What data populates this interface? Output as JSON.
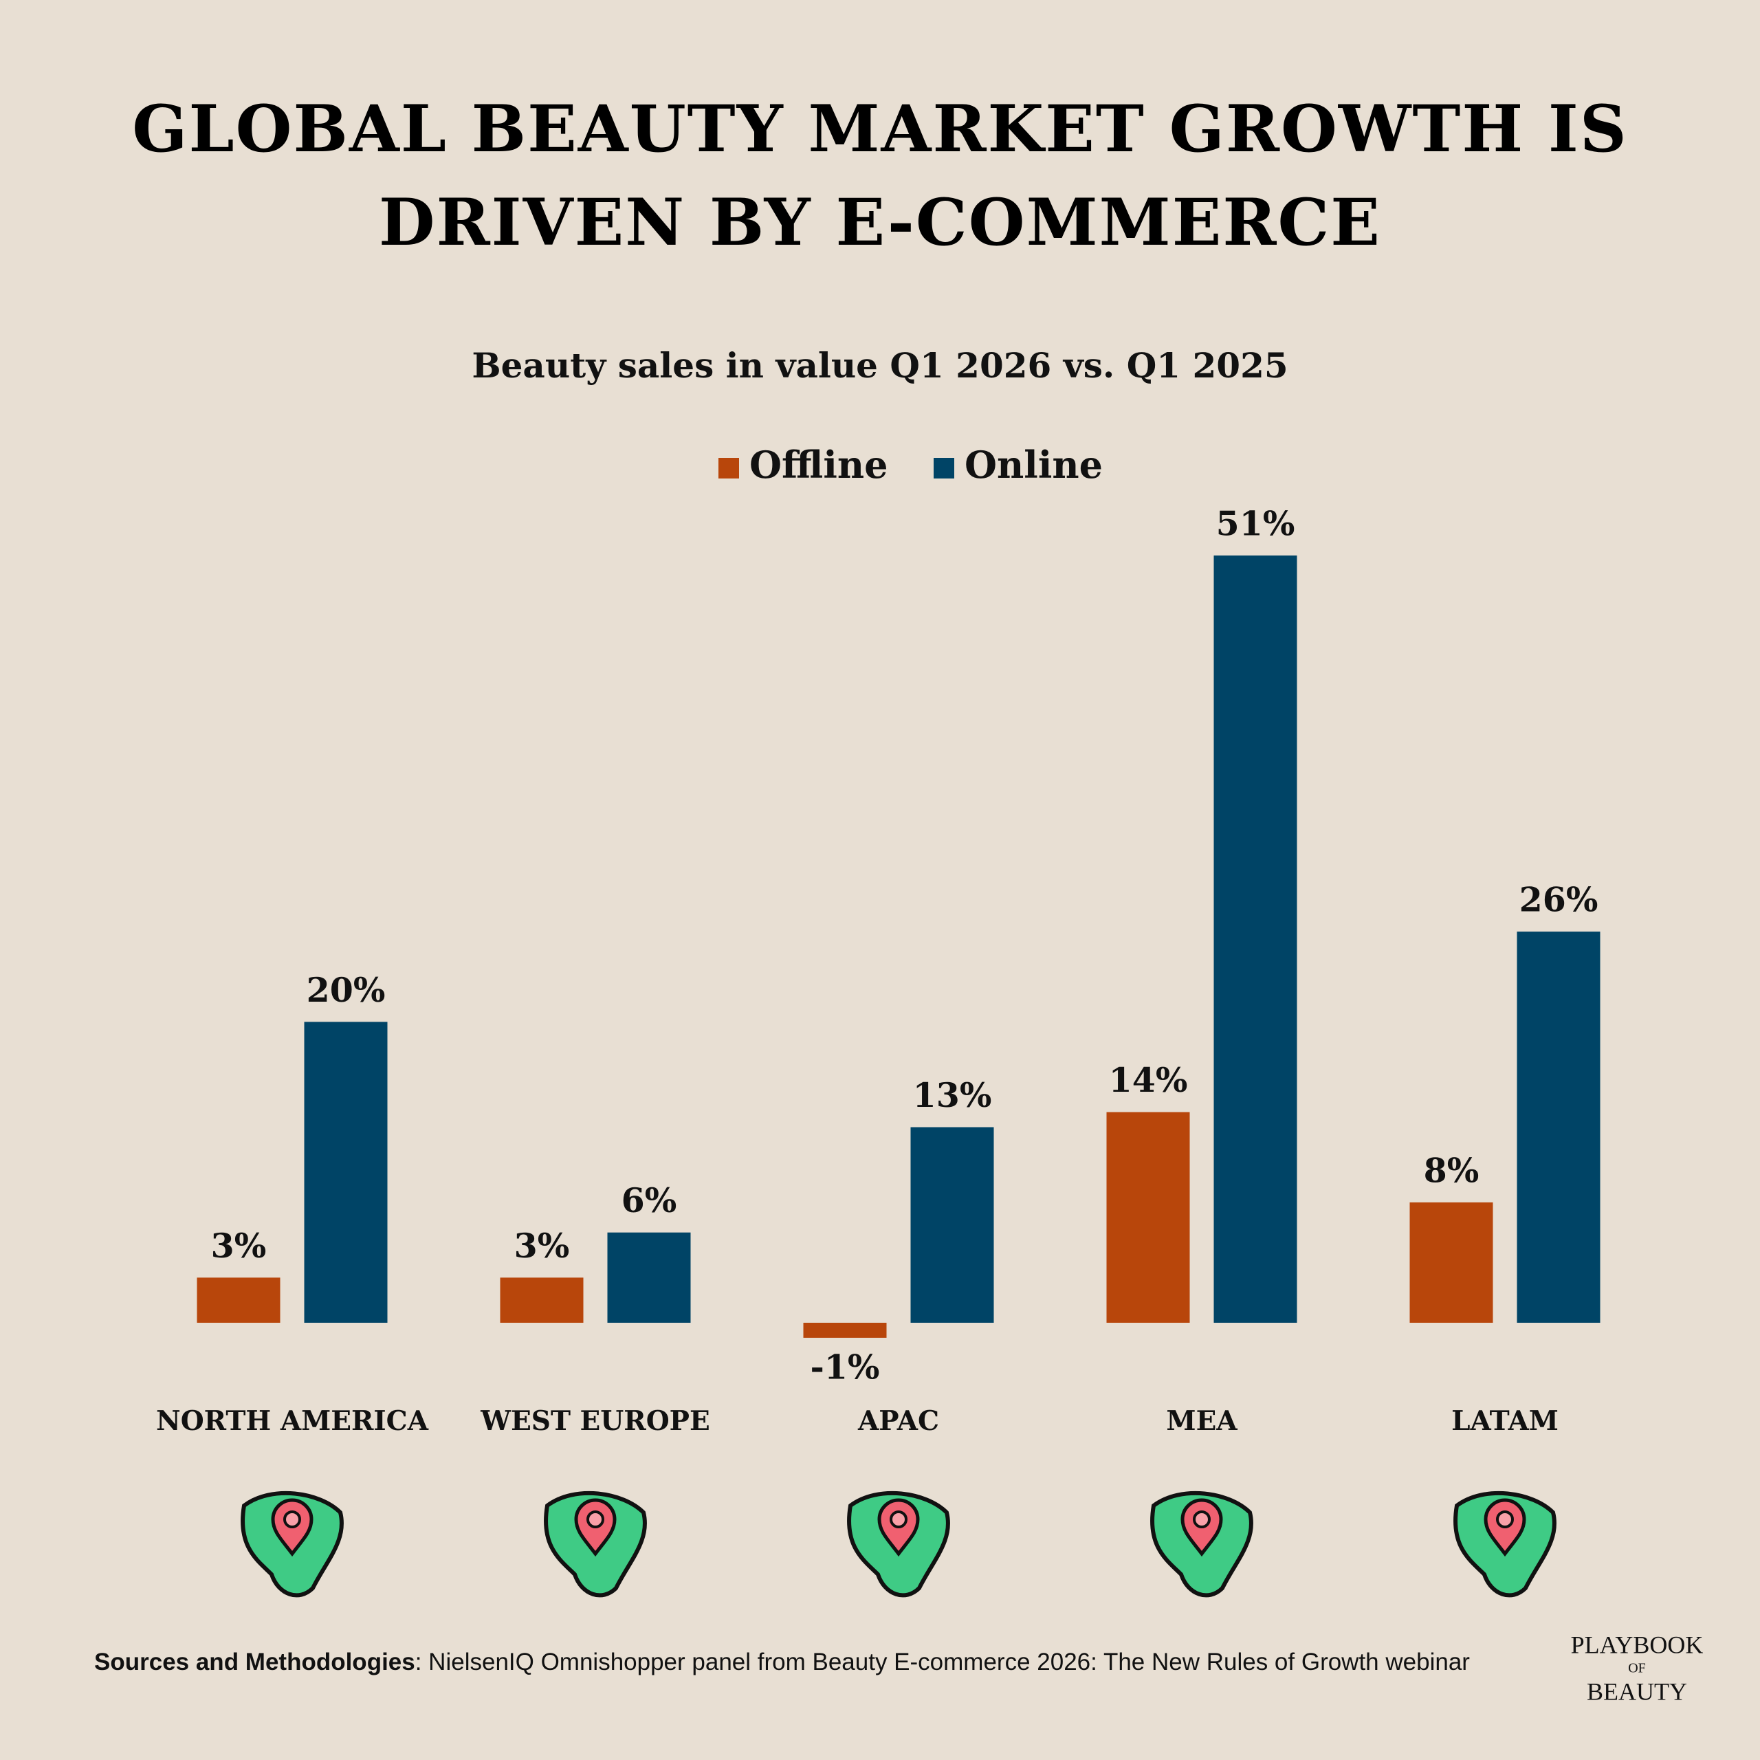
{
  "chart_data": {
    "type": "bar",
    "title": "GLOBAL BEAUTY MARKET GROWTH IS DRIVEN BY E-COMMERCE",
    "subtitle": "Beauty sales in value Q1 2026 vs. Q1 2025",
    "categories": [
      "NORTH AMERICA",
      "WEST EUROPE",
      "APAC",
      "MEA",
      "LATAM"
    ],
    "series": [
      {
        "name": "Offline",
        "color": "#b8460b",
        "values": [
          3,
          3,
          -1,
          14,
          8
        ],
        "value_labels": [
          "3%",
          "3%",
          "-1%",
          "14%",
          "8%"
        ]
      },
      {
        "name": "Online",
        "color": "#004466",
        "values": [
          20,
          6,
          13,
          51,
          26
        ],
        "value_labels": [
          "20%",
          "6%",
          "13%",
          "51%",
          "26%"
        ]
      }
    ],
    "legend": "top",
    "source_label": "Sources and Methodologies",
    "source_text": ": NielsenIQ Omnishopper panel from Beauty E-commerce 2026: The New Rules of Growth webinar",
    "logo": [
      "PLAYBOOK",
      "OF",
      "BEAUTY"
    ]
  }
}
